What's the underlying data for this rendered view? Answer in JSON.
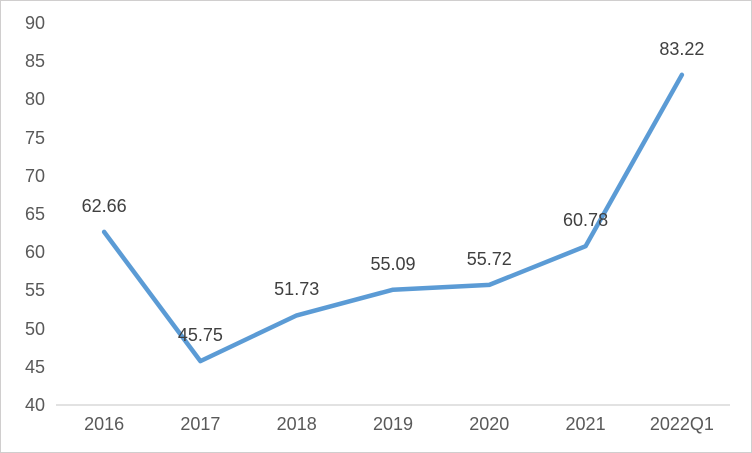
{
  "chart_data": {
    "type": "line",
    "title": "",
    "xlabel": "",
    "ylabel": "",
    "categories": [
      "2016",
      "2017",
      "2018",
      "2019",
      "2020",
      "2021",
      "2022Q1"
    ],
    "series": [
      {
        "name": "value",
        "values": [
          62.66,
          45.75,
          51.73,
          55.09,
          55.72,
          60.78,
          83.22
        ]
      }
    ],
    "data_labels": [
      "62.66",
      "45.75",
      "51.73",
      "55.09",
      "55.72",
      "60.78",
      "83.22"
    ],
    "ylim": [
      40,
      90
    ],
    "y_tick_step": 5,
    "y_tick_labels": [
      "40",
      "45",
      "50",
      "55",
      "60",
      "65",
      "70",
      "75",
      "80",
      "85",
      "90"
    ],
    "grid": false,
    "legend": "none",
    "colors": {
      "line": "#5B9BD5",
      "axis_line": "#D9D9D9",
      "axis_text": "#595959",
      "data_label_text": "#404040",
      "frame_border": "#D0CECE",
      "background": "#FFFFFF"
    }
  }
}
